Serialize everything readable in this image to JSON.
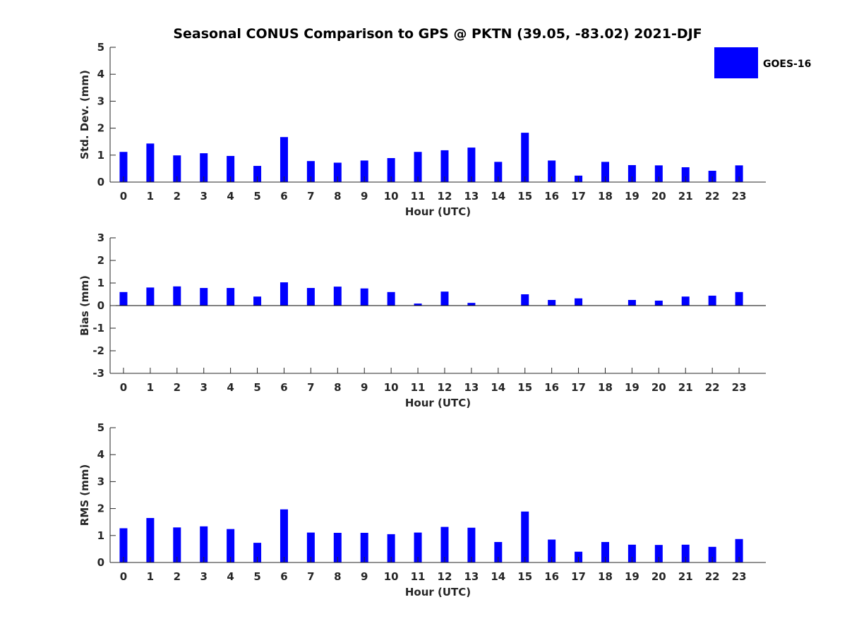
{
  "title": "Seasonal CONUS Comparison to GPS @ PKTN (39.05, -83.02) 2021-DJF",
  "legend": {
    "label": "GOES-16",
    "color": "#0000ff",
    "position": "top-right"
  },
  "colors": {
    "bar": "#0000ff",
    "axis": "#262626",
    "zero_line": "#000000"
  },
  "chart_data": [
    {
      "type": "bar",
      "name": "std-dev",
      "xlabel": "Hour (UTC)",
      "ylabel": "Std. Dev. (mm)",
      "categories": [
        "0",
        "1",
        "2",
        "3",
        "4",
        "5",
        "6",
        "7",
        "8",
        "9",
        "10",
        "11",
        "12",
        "13",
        "14",
        "15",
        "16",
        "17",
        "18",
        "19",
        "20",
        "21",
        "22",
        "23"
      ],
      "values": [
        1.12,
        1.43,
        0.99,
        1.07,
        0.97,
        0.6,
        1.67,
        0.78,
        0.72,
        0.8,
        0.89,
        1.12,
        1.18,
        1.28,
        0.75,
        1.83,
        0.8,
        0.24,
        0.75,
        0.63,
        0.62,
        0.55,
        0.42,
        0.62
      ],
      "ylim": [
        0,
        5
      ],
      "yticks": [
        0,
        1,
        2,
        3,
        4,
        5
      ],
      "grid": false
    },
    {
      "type": "bar",
      "name": "bias",
      "xlabel": "Hour (UTC)",
      "ylabel": "Bias (mm)",
      "categories": [
        "0",
        "1",
        "2",
        "3",
        "4",
        "5",
        "6",
        "7",
        "8",
        "9",
        "10",
        "11",
        "12",
        "13",
        "14",
        "15",
        "16",
        "17",
        "18",
        "19",
        "20",
        "21",
        "22",
        "23"
      ],
      "values": [
        0.6,
        0.8,
        0.85,
        0.78,
        0.78,
        0.4,
        1.03,
        0.78,
        0.84,
        0.76,
        0.6,
        0.09,
        0.62,
        0.12,
        0.0,
        0.5,
        0.25,
        0.32,
        0.0,
        0.25,
        0.22,
        0.4,
        0.44,
        0.6
      ],
      "ylim": [
        -3,
        3
      ],
      "yticks": [
        -3,
        -2,
        -1,
        0,
        1,
        2,
        3
      ],
      "grid": false
    },
    {
      "type": "bar",
      "name": "rms",
      "xlabel": "Hour (UTC)",
      "ylabel": "RMS (mm)",
      "categories": [
        "0",
        "1",
        "2",
        "3",
        "4",
        "5",
        "6",
        "7",
        "8",
        "9",
        "10",
        "11",
        "12",
        "13",
        "14",
        "15",
        "16",
        "17",
        "18",
        "19",
        "20",
        "21",
        "22",
        "23"
      ],
      "values": [
        1.27,
        1.65,
        1.3,
        1.34,
        1.24,
        0.73,
        1.97,
        1.11,
        1.1,
        1.1,
        1.05,
        1.11,
        1.32,
        1.29,
        0.76,
        1.89,
        0.85,
        0.4,
        0.76,
        0.66,
        0.65,
        0.66,
        0.58,
        0.87
      ],
      "ylim": [
        0,
        5
      ],
      "yticks": [
        0,
        1,
        2,
        3,
        4,
        5
      ],
      "grid": false
    }
  ]
}
